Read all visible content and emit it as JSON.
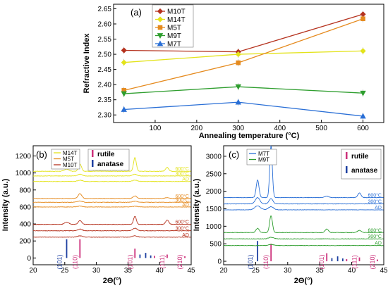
{
  "chart_data": [
    {
      "type": "line",
      "panel_label": "(a)",
      "xlabel": "Annealing temperature (°C)",
      "ylabel": "Refractive Index",
      "xlim": [
        0,
        650
      ],
      "ylim": [
        2.275,
        2.665
      ],
      "xticks": [
        "100",
        "200",
        "300",
        "400",
        "500",
        "600"
      ],
      "yticks": [
        "2.30",
        "2.35",
        "2.40",
        "2.45",
        "2.50",
        "2.55",
        "2.60",
        "2.65"
      ],
      "legend_position": "top-left",
      "series": [
        {
          "name": "M10T",
          "color": "#b5321e",
          "marker": "diamond",
          "x": [
            25,
            300,
            600
          ],
          "y": [
            2.513,
            2.508,
            2.632
          ]
        },
        {
          "name": "M14T",
          "color": "#e3e31a",
          "marker": "diamond",
          "x": [
            25,
            300,
            600
          ],
          "y": [
            2.473,
            2.5,
            2.511
          ]
        },
        {
          "name": "M5T",
          "color": "#e58a1e",
          "marker": "square",
          "x": [
            25,
            300,
            600
          ],
          "y": [
            2.381,
            2.472,
            2.617
          ]
        },
        {
          "name": "M9T",
          "color": "#2f9e2f",
          "marker": "triangle-down",
          "x": [
            25,
            300,
            600
          ],
          "y": [
            2.37,
            2.393,
            2.372
          ]
        },
        {
          "name": "M7T",
          "color": "#2a6fd6",
          "marker": "triangle-up",
          "x": [
            25,
            300,
            600
          ],
          "y": [
            2.318,
            2.342,
            2.296
          ]
        }
      ]
    },
    {
      "type": "line",
      "panel_label": "(b)",
      "xlabel": "2Θ(°)",
      "ylabel": "Intensity (a.u.)",
      "xlim": [
        20,
        45
      ],
      "ylim": [
        -80,
        1320
      ],
      "xticks": [
        "20",
        "25",
        "30",
        "35",
        "40",
        "45"
      ],
      "yticks": [
        "0",
        "200",
        "400",
        "600",
        "800",
        "1000",
        "1200"
      ],
      "legend": [
        {
          "name": "M14T",
          "color": "#e3e31a"
        },
        {
          "name": "M5T",
          "color": "#e58a1e"
        },
        {
          "name": "M10T",
          "color": "#b5321e"
        }
      ],
      "phase_legend": [
        {
          "name": "rutile",
          "color": "#cc2f7a"
        },
        {
          "name": "anatase",
          "color": "#1c3fa0"
        }
      ],
      "traces": [
        {
          "sample": "M14T",
          "label": "600°C",
          "color": "#e3e31a",
          "baseline": 1020,
          "peaks": [
            [
              25.3,
              25,
              0.35
            ],
            [
              27.4,
              85,
              0.25
            ],
            [
              36.1,
              160,
              0.22
            ],
            [
              41.2,
              45,
              0.25
            ]
          ]
        },
        {
          "sample": "M14T",
          "label": "300°C",
          "color": "#e3e31a",
          "baseline": 965,
          "peaks": [
            [
              27.4,
              20,
              0.35
            ],
            [
              36.1,
              20,
              0.35
            ]
          ]
        },
        {
          "sample": "M14T",
          "label": "AD",
          "color": "#e3e31a",
          "baseline": 900,
          "peaks": [
            [
              27.4,
              15,
              0.4
            ],
            [
              36.1,
              15,
              0.4
            ]
          ]
        },
        {
          "sample": "M5T",
          "label": "600°C",
          "color": "#e58a1e",
          "baseline": 700,
          "peaks": [
            [
              27.4,
              55,
              0.3
            ],
            [
              36.1,
              30,
              0.3
            ],
            [
              41.2,
              10,
              0.35
            ]
          ]
        },
        {
          "sample": "M5T",
          "label": "300°C",
          "color": "#e58a1e",
          "baseline": 655,
          "peaks": [
            [
              27.4,
              15,
              0.4
            ],
            [
              36.1,
              12,
              0.4
            ]
          ]
        },
        {
          "sample": "M5T",
          "label": "AD",
          "color": "#e58a1e",
          "baseline": 600,
          "peaks": [
            [
              27.4,
              10,
              0.4
            ],
            [
              36.1,
              8,
              0.4
            ]
          ]
        },
        {
          "sample": "M10T",
          "label": "600°C",
          "color": "#b5321e",
          "baseline": 395,
          "peaks": [
            [
              25.3,
              25,
              0.35
            ],
            [
              27.4,
              45,
              0.28
            ],
            [
              36.1,
              95,
              0.22
            ],
            [
              41.2,
              50,
              0.25
            ]
          ]
        },
        {
          "sample": "M10T",
          "label": "300°C",
          "color": "#b5321e",
          "baseline": 320,
          "peaks": [
            [
              27.4,
              20,
              0.35
            ],
            [
              36.1,
              30,
              0.35
            ]
          ]
        },
        {
          "sample": "M10T",
          "label": "AD",
          "color": "#b5321e",
          "baseline": 245,
          "peaks": [
            [
              27.4,
              15,
              0.4
            ],
            [
              36.1,
              15,
              0.4
            ]
          ]
        }
      ],
      "reflections": [
        {
          "hkl": "(101)",
          "phase": "anatase",
          "x": 25.3
        },
        {
          "hkl": "(110)",
          "phase": "rutile",
          "x": 27.4
        },
        {
          "hkl": "(101)",
          "phase": "rutile",
          "x": 36.1
        },
        {
          "hkl": "(111)",
          "phase": "rutile",
          "x": 41.2
        },
        {
          "hkl": "(210)",
          "phase": "rutile",
          "x": 44.0
        }
      ],
      "sticks": [
        {
          "phase": "anatase",
          "x": 25.3,
          "h": 220
        },
        {
          "phase": "rutile",
          "x": 27.4,
          "h": 220
        },
        {
          "phase": "rutile",
          "x": 36.1,
          "h": 110
        },
        {
          "phase": "anatase",
          "x": 36.9,
          "h": 40
        },
        {
          "phase": "anatase",
          "x": 37.8,
          "h": 60
        },
        {
          "phase": "anatase",
          "x": 38.6,
          "h": 30
        },
        {
          "phase": "rutile",
          "x": 39.2,
          "h": 25
        },
        {
          "phase": "rutile",
          "x": 41.2,
          "h": 40
        },
        {
          "phase": "rutile",
          "x": 44.0,
          "h": 20
        }
      ]
    },
    {
      "type": "line",
      "panel_label": "(c)",
      "xlabel": "2Θ(°)",
      "ylabel": "Intensity (a.u.)",
      "xlim": [
        20,
        45
      ],
      "ylim": [
        -100,
        3300
      ],
      "xticks": [
        "20",
        "25",
        "30",
        "35",
        "40",
        "45"
      ],
      "yticks": [
        "0",
        "500",
        "1000",
        "1500",
        "2000",
        "2500",
        "3000"
      ],
      "legend": [
        {
          "name": "M7T",
          "color": "#2a6fd6"
        },
        {
          "name": "M9T",
          "color": "#2f9e2f"
        }
      ],
      "phase_legend": [
        {
          "name": "rutile",
          "color": "#cc2f7a"
        },
        {
          "name": "anatase",
          "color": "#1c3fa0"
        }
      ],
      "traces": [
        {
          "sample": "M7T",
          "label": "600°C",
          "color": "#2a6fd6",
          "baseline": 1820,
          "peaks": [
            [
              25.3,
              500,
              0.22
            ],
            [
              27.4,
              1480,
              0.2
            ],
            [
              36.1,
              40,
              0.3
            ],
            [
              41.2,
              130,
              0.25
            ]
          ]
        },
        {
          "sample": "M7T",
          "label": "300°C",
          "color": "#2a6fd6",
          "baseline": 1640,
          "peaks": [
            [
              25.3,
              180,
              0.35
            ],
            [
              27.4,
              150,
              0.3
            ]
          ]
        },
        {
          "sample": "M7T",
          "label": "AD",
          "color": "#2a6fd6",
          "baseline": 1470,
          "peaks": [
            [
              25.3,
              110,
              0.45
            ],
            [
              27.4,
              90,
              0.4
            ]
          ]
        },
        {
          "sample": "M9T",
          "label": "600°C",
          "color": "#2f9e2f",
          "baseline": 820,
          "peaks": [
            [
              25.3,
              120,
              0.25
            ],
            [
              27.4,
              480,
              0.22
            ],
            [
              36.1,
              100,
              0.25
            ],
            [
              41.2,
              60,
              0.3
            ]
          ]
        },
        {
          "sample": "M9T",
          "label": "300°C",
          "color": "#2f9e2f",
          "baseline": 640,
          "peaks": [
            [
              27.4,
              45,
              0.4
            ]
          ]
        },
        {
          "sample": "M9T",
          "label": "AD",
          "color": "#2f9e2f",
          "baseline": 450,
          "peaks": [
            [
              27.4,
              30,
              0.4
            ]
          ]
        }
      ],
      "reflections": [
        {
          "hkl": "(101)",
          "phase": "anatase",
          "x": 25.3
        },
        {
          "hkl": "(110)",
          "phase": "rutile",
          "x": 27.4
        },
        {
          "hkl": "(101)",
          "phase": "rutile",
          "x": 36.1
        },
        {
          "hkl": "(111)",
          "phase": "rutile",
          "x": 41.2
        },
        {
          "hkl": "(210)",
          "phase": "rutile",
          "x": 44.0
        }
      ],
      "sticks": [
        {
          "phase": "anatase",
          "x": 25.3,
          "h": 580
        },
        {
          "phase": "rutile",
          "x": 27.4,
          "h": 500
        },
        {
          "phase": "rutile",
          "x": 36.1,
          "h": 230
        },
        {
          "phase": "anatase",
          "x": 36.9,
          "h": 90
        },
        {
          "phase": "anatase",
          "x": 37.8,
          "h": 140
        },
        {
          "phase": "anatase",
          "x": 38.6,
          "h": 80
        },
        {
          "phase": "rutile",
          "x": 39.2,
          "h": 60
        },
        {
          "phase": "rutile",
          "x": 41.2,
          "h": 110
        },
        {
          "phase": "rutile",
          "x": 44.0,
          "h": 50
        }
      ]
    }
  ]
}
